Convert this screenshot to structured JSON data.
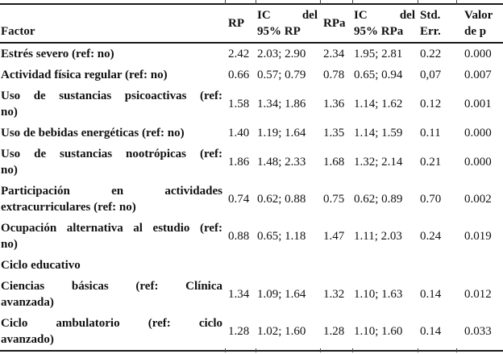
{
  "colors": {
    "background": "#ffffff",
    "text": "#111111",
    "rule": "#1a1a1a"
  },
  "table": {
    "header": {
      "factor": "Factor",
      "rp": "RP",
      "ic_rp": {
        "ic": "IC",
        "del": "del",
        "line2": "95% RP"
      },
      "rpa": "RPa",
      "ic_rpa": {
        "ic": "IC",
        "del": "del",
        "line2": "95% RPa"
      },
      "std_err": {
        "line1": "Std.",
        "line2": "Err."
      },
      "valor_p": {
        "line1": "Valor",
        "line2": "de p"
      }
    },
    "rows": [
      {
        "factor_lines": [
          "Estrés severo (ref: no)"
        ],
        "rp": "2.42",
        "ic_rp": "2.03; 2.90",
        "rpa": "2.34",
        "ic_rpa": "1.95; 2.81",
        "std_err": "0.22",
        "p": "0.000"
      },
      {
        "factor_lines": [
          "Actividad física regular (ref: no)"
        ],
        "rp": "0.66",
        "ic_rp": "0.57; 0.79",
        "rpa": "0.78",
        "ic_rpa": "0.65; 0.94",
        "std_err": "0,07",
        "p": "0.007"
      },
      {
        "factor_lines": [
          "Uso de sustancias psicoactivas (ref:",
          "no)"
        ],
        "rp": "1.58",
        "ic_rp": "1.34; 1.86",
        "rpa": "1.36",
        "ic_rpa": "1.14; 1.62",
        "std_err": "0.12",
        "p": "0.001"
      },
      {
        "factor_lines": [
          "Uso de bebidas energéticas (ref: no)"
        ],
        "rp": "1.40",
        "ic_rp": "1.19; 1.64",
        "rpa": "1.35",
        "ic_rpa": "1.14; 1.59",
        "std_err": "0.11",
        "p": "0.000"
      },
      {
        "factor_lines": [
          "Uso de sustancias nootrópicas (ref:",
          "no)"
        ],
        "rp": "1.86",
        "ic_rp": "1.48; 2.33",
        "rpa": "1.68",
        "ic_rpa": "1.32; 2.14",
        "std_err": "0.21",
        "p": "0.000"
      },
      {
        "factor_lines": [
          "Participación en actividades",
          "extracurriculares (ref: no)"
        ],
        "rp": "0.74",
        "ic_rp": "0.62; 0.88",
        "rpa": "0.75",
        "ic_rpa": "0.62; 0.89",
        "std_err": "0.70",
        "p": "0.002"
      },
      {
        "factor_lines": [
          "Ocupación alternativa al estudio (ref:",
          "no)"
        ],
        "rp": "0.88",
        "ic_rp": "0.65; 1.18",
        "rpa": "1.47",
        "ic_rpa": "1.11; 2.03",
        "std_err": "0.24",
        "p": "0.019"
      },
      {
        "factor_lines": [
          "Ciclo educativo"
        ],
        "rp": "",
        "ic_rp": "",
        "rpa": "",
        "ic_rpa": "",
        "std_err": "",
        "p": ""
      },
      {
        "factor_lines": [
          "Ciencias básicas (ref: Clínica",
          "avanzada)"
        ],
        "rp": "1.34",
        "ic_rp": "1.09; 1.64",
        "rpa": "1.32",
        "ic_rpa": "1.10; 1.63",
        "std_err": "0.14",
        "p": "0.012"
      },
      {
        "factor_lines": [
          "Ciclo ambulatorio (ref: ciclo",
          "avanzado)"
        ],
        "rp": "1.28",
        "ic_rp": "1.02; 1.60",
        "rpa": "1.28",
        "ic_rpa": "1.10; 1.60",
        "std_err": "0.14",
        "p": "0.033"
      }
    ]
  }
}
